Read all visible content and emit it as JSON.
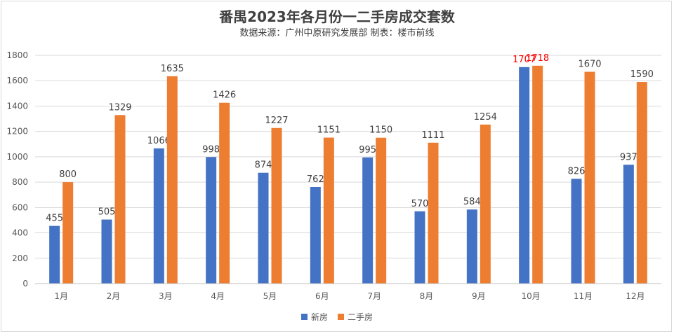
{
  "colors": {
    "new": "#4472C4",
    "second": "#ED7D31",
    "highlight": "#FF0000",
    "label": "#404040",
    "grid": "#d9d9d9",
    "axis": "#595959"
  },
  "chart_data": {
    "type": "bar",
    "title": "番禺2023年各月份一二手房成交套数",
    "subtitle": "数据来源：广州中原研究发展部  制表：楼市前线",
    "categories": [
      "1月",
      "2月",
      "3月",
      "4月",
      "5月",
      "6月",
      "7月",
      "8月",
      "9月",
      "10月",
      "11月",
      "12月"
    ],
    "series": [
      {
        "name": "新房",
        "values": [
          455,
          505,
          1066,
          998,
          874,
          762,
          995,
          570,
          584,
          1707,
          826,
          937
        ]
      },
      {
        "name": "二手房",
        "values": [
          800,
          1329,
          1635,
          1426,
          1227,
          1151,
          1150,
          1111,
          1254,
          1718,
          1670,
          1590
        ]
      }
    ],
    "highlight_category": "10月",
    "ylim": [
      0,
      1800
    ],
    "yticks": [
      0,
      200,
      400,
      600,
      800,
      1000,
      1200,
      1400,
      1600,
      1800
    ],
    "grid": true,
    "legend": "bottom"
  }
}
